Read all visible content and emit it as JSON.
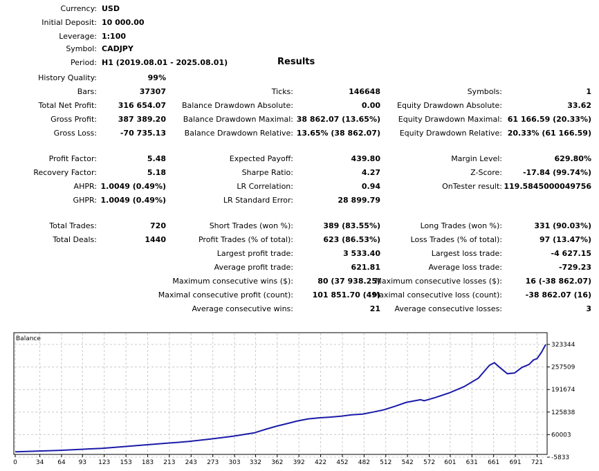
{
  "header": {
    "currency": {
      "label": "Currency:",
      "value": "USD"
    },
    "deposit": {
      "label": "Initial Deposit:",
      "value": "10 000.00"
    },
    "leverage": {
      "label": "Leverage:",
      "value": "1:100"
    },
    "symbol": {
      "label": "Symbol:",
      "value": "CADJPY"
    },
    "period": {
      "label": "Period:",
      "value": "H1 (2019.08.01 - 2025.08.01)"
    }
  },
  "results_title": "Results",
  "col1": {
    "history_quality": {
      "label": "History Quality:",
      "value": "99%"
    },
    "bars": {
      "label": "Bars:",
      "value": "37307"
    },
    "net_profit": {
      "label": "Total Net Profit:",
      "value": "316 654.07"
    },
    "gross_profit": {
      "label": "Gross Profit:",
      "value": "387 389.20"
    },
    "gross_loss": {
      "label": "Gross Loss:",
      "value": "-70 735.13"
    },
    "profit_factor": {
      "label": "Profit Factor:",
      "value": "5.48"
    },
    "recovery_factor": {
      "label": "Recovery Factor:",
      "value": "5.18"
    },
    "ahpr": {
      "label": "AHPR:",
      "value": "1.0049 (0.49%)"
    },
    "ghpr": {
      "label": "GHPR:",
      "value": "1.0049 (0.49%)"
    },
    "total_trades": {
      "label": "Total Trades:",
      "value": "720"
    },
    "total_deals": {
      "label": "Total Deals:",
      "value": "1440"
    }
  },
  "col2": {
    "ticks": {
      "label": "Ticks:",
      "value": "146648"
    },
    "bal_dd_abs": {
      "label": "Balance Drawdown Absolute:",
      "value": "0.00"
    },
    "bal_dd_max": {
      "label": "Balance Drawdown Maximal:",
      "value": "38 862.07 (13.65%)"
    },
    "bal_dd_rel": {
      "label": "Balance Drawdown Relative:",
      "value": "13.65% (38 862.07)"
    },
    "expected_payoff": {
      "label": "Expected Payoff:",
      "value": "439.80"
    },
    "sharpe": {
      "label": "Sharpe Ratio:",
      "value": "4.27"
    },
    "lr_corr": {
      "label": "LR Correlation:",
      "value": "0.94"
    },
    "lr_err": {
      "label": "LR Standard Error:",
      "value": "28 899.79"
    },
    "short_trades": {
      "label": "Short Trades (won %):",
      "value": "389 (83.55%)"
    },
    "profit_trades": {
      "label": "Profit Trades (% of total):",
      "value": "623 (86.53%)"
    },
    "largest_profit": {
      "label": "Largest profit trade:",
      "value": "3 533.40"
    },
    "avg_profit": {
      "label": "Average profit trade:",
      "value": "621.81"
    },
    "max_consec_wins": {
      "label": "Maximum consecutive wins ($):",
      "value": "80 (37 938.25)"
    },
    "max_consec_profit": {
      "label": "Maximal consecutive profit (count):",
      "value": "101 851.70 (49)"
    },
    "avg_consec_wins": {
      "label": "Average consecutive wins:",
      "value": "21"
    }
  },
  "col3": {
    "symbols": {
      "label": "Symbols:",
      "value": "1"
    },
    "eq_dd_abs": {
      "label": "Equity Drawdown Absolute:",
      "value": "33.62"
    },
    "eq_dd_max": {
      "label": "Equity Drawdown Maximal:",
      "value": "61 166.59 (20.33%)"
    },
    "eq_dd_rel": {
      "label": "Equity Drawdown Relative:",
      "value": "20.33% (61 166.59)"
    },
    "margin_level": {
      "label": "Margin Level:",
      "value": "629.80%"
    },
    "z_score": {
      "label": "Z-Score:",
      "value": "-17.84 (99.74%)"
    },
    "ontester": {
      "label": "OnTester result:",
      "value": "119.5845000049756"
    },
    "long_trades": {
      "label": "Long Trades (won %):",
      "value": "331 (90.03%)"
    },
    "loss_trades": {
      "label": "Loss Trades (% of total):",
      "value": "97 (13.47%)"
    },
    "largest_loss": {
      "label": "Largest loss trade:",
      "value": "-4 627.15"
    },
    "avg_loss": {
      "label": "Average loss trade:",
      "value": "-729.23"
    },
    "max_consec_losses": {
      "label": "Maximum consecutive losses ($):",
      "value": "16 (-38 862.07)"
    },
    "max_consec_loss": {
      "label": "Maximal consecutive loss (count):",
      "value": "-38 862.07 (16)"
    },
    "avg_consec_losses": {
      "label": "Average consecutive losses:",
      "value": "3"
    }
  },
  "chart_data": {
    "type": "line",
    "title": "Balance",
    "line_color": "#1a1aa8",
    "grid": true,
    "x_ticks": [
      "0",
      "34",
      "64",
      "93",
      "123",
      "153",
      "183",
      "213",
      "243",
      "273",
      "303",
      "332",
      "362",
      "392",
      "422",
      "452",
      "482",
      "512",
      "542",
      "572",
      "601",
      "631",
      "661",
      "691",
      "721"
    ],
    "y_ticks": [
      "323344",
      "257509",
      "191674",
      "125838",
      "60003",
      "-5833"
    ],
    "xlim": [
      0,
      733
    ],
    "ylim": [
      -5833,
      323344
    ],
    "series": [
      {
        "x": [
          0,
          30,
          60,
          90,
          120,
          150,
          180,
          210,
          240,
          270,
          300,
          330,
          345,
          360,
          375,
          390,
          405,
          420,
          435,
          450,
          465,
          480,
          495,
          510,
          525,
          540,
          555,
          560,
          565,
          580,
          600,
          620,
          640,
          655,
          662,
          670,
          680,
          690,
          700,
          710,
          716,
          721,
          727,
          733
        ],
        "y": [
          10000,
          12000,
          14000,
          17000,
          20000,
          25000,
          30000,
          35000,
          40000,
          47000,
          55000,
          65000,
          75000,
          84000,
          92000,
          100000,
          106000,
          109000,
          111000,
          114000,
          118000,
          120000,
          126000,
          133000,
          143000,
          154000,
          160000,
          162000,
          159000,
          168000,
          182000,
          200000,
          225000,
          262000,
          270000,
          255000,
          238000,
          240000,
          256000,
          265000,
          278000,
          282000,
          300000,
          323344
        ]
      }
    ]
  }
}
